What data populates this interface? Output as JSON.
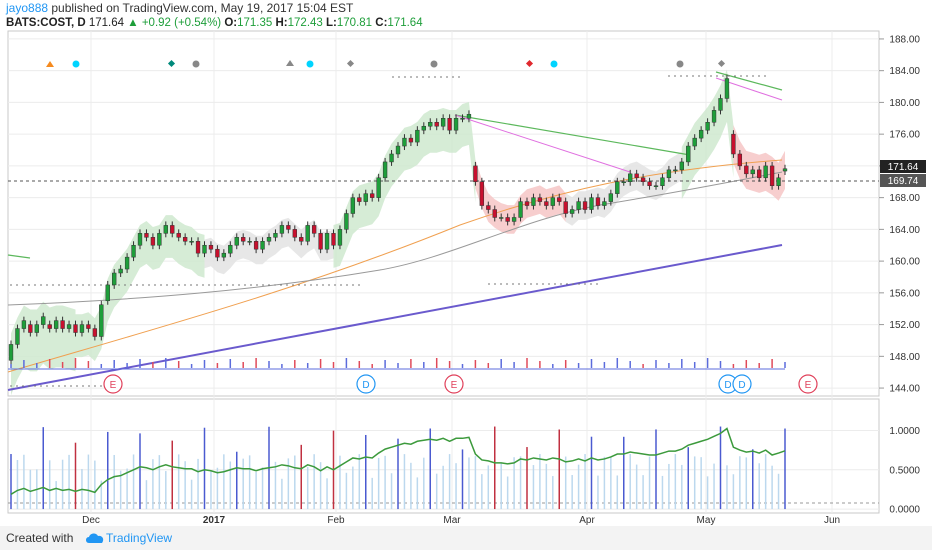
{
  "header": {
    "user": "jayo888",
    "published_text": " published on TradingView.com, May 19, 2017 15:04 EST"
  },
  "quote": {
    "symbol": "BATS:COST, D",
    "last": "171.64",
    "change": "+0.92 (+0.54%)",
    "open_label": "O:",
    "open": "171.35",
    "high_label": "H:",
    "high": "172.43",
    "low_label": "L:",
    "low": "170.81",
    "close_label": "C:",
    "close": "171.64"
  },
  "footer": {
    "created_with": "Created with",
    "brand": "TradingView"
  },
  "colors": {
    "up": "#1e9e3a",
    "down": "#c8102e",
    "grid": "#e6e6e6",
    "accent": "#2196f3"
  },
  "chart_data": {
    "type": "candlestick",
    "price_axis": {
      "ticks": [
        "188.00",
        "184.00",
        "180.00",
        "176.00",
        "172.00",
        "168.00",
        "164.00",
        "160.00",
        "156.00",
        "152.00",
        "148.00",
        "144.00"
      ],
      "ylim": [
        143,
        189
      ]
    },
    "x_tick_labels": [
      "Dec",
      "2017",
      "Feb",
      "Mar",
      "Apr",
      "May",
      "Jun"
    ],
    "price_labels": {
      "last": "171.64",
      "dashed_level": "169.74"
    },
    "event_markers": [
      "E",
      "D",
      "E",
      "D",
      "D",
      "E"
    ],
    "candles": [
      [
        147.5,
        149.5
      ],
      [
        149.5,
        151.5
      ],
      [
        151.5,
        152.5
      ],
      [
        152.0,
        151.0
      ],
      [
        151.0,
        152.0
      ],
      [
        152.0,
        153.0
      ],
      [
        152.0,
        151.5
      ],
      [
        151.5,
        152.5
      ],
      [
        152.5,
        151.5
      ],
      [
        151.5,
        152.0
      ],
      [
        152.0,
        151.0
      ],
      [
        151.0,
        152.0
      ],
      [
        152.0,
        151.5
      ],
      [
        151.5,
        150.5
      ],
      [
        150.5,
        154.5
      ],
      [
        155.0,
        157.0
      ],
      [
        157.0,
        158.5
      ],
      [
        158.5,
        159.0
      ],
      [
        159.0,
        160.5
      ],
      [
        160.5,
        162.0
      ],
      [
        162.0,
        163.5
      ],
      [
        163.5,
        163.0
      ],
      [
        163.0,
        162.0
      ],
      [
        162.0,
        163.5
      ],
      [
        163.5,
        164.5
      ],
      [
        164.5,
        163.5
      ],
      [
        163.5,
        163.0
      ],
      [
        163.0,
        162.5
      ],
      [
        162.5,
        162.5
      ],
      [
        162.5,
        161.0
      ],
      [
        161.0,
        162.0
      ],
      [
        162.0,
        161.5
      ],
      [
        161.5,
        160.5
      ],
      [
        160.5,
        161.0
      ],
      [
        161.0,
        162.0
      ],
      [
        162.0,
        163.0
      ],
      [
        163.0,
        162.5
      ],
      [
        162.5,
        162.5
      ],
      [
        162.5,
        161.5
      ],
      [
        161.5,
        162.5
      ],
      [
        162.5,
        163.0
      ],
      [
        163.0,
        163.5
      ],
      [
        163.5,
        164.5
      ],
      [
        164.5,
        164.0
      ],
      [
        164.0,
        163.0
      ],
      [
        163.0,
        162.5
      ],
      [
        162.5,
        164.5
      ],
      [
        164.5,
        163.5
      ],
      [
        163.5,
        161.5
      ],
      [
        161.5,
        163.5
      ],
      [
        163.5,
        162.0
      ],
      [
        162.0,
        164.0
      ],
      [
        164.0,
        166.0
      ],
      [
        166.0,
        168.0
      ],
      [
        168.0,
        167.5
      ],
      [
        167.5,
        168.5
      ],
      [
        168.5,
        168.0
      ],
      [
        168.0,
        170.5
      ],
      [
        170.5,
        172.5
      ],
      [
        172.5,
        173.5
      ],
      [
        173.5,
        174.5
      ],
      [
        174.5,
        175.5
      ],
      [
        175.5,
        175.0
      ],
      [
        175.0,
        176.5
      ],
      [
        176.5,
        177.0
      ],
      [
        177.0,
        177.5
      ],
      [
        177.5,
        177.0
      ],
      [
        177.0,
        178.0
      ],
      [
        178.0,
        176.5
      ],
      [
        176.5,
        178.0
      ],
      [
        178.0,
        178.0
      ],
      [
        178.0,
        178.5
      ],
      [
        172.0,
        170.0
      ],
      [
        170.0,
        167.0
      ],
      [
        167.0,
        166.5
      ],
      [
        166.5,
        165.5
      ],
      [
        165.5,
        165.5
      ],
      [
        165.5,
        165.0
      ],
      [
        165.0,
        165.5
      ],
      [
        165.5,
        167.5
      ],
      [
        167.5,
        167.0
      ],
      [
        167.0,
        168.0
      ],
      [
        168.0,
        167.5
      ],
      [
        167.5,
        167.0
      ],
      [
        167.0,
        168.0
      ],
      [
        168.0,
        167.5
      ],
      [
        167.5,
        166.0
      ],
      [
        166.0,
        166.5
      ],
      [
        166.5,
        167.5
      ],
      [
        167.5,
        166.5
      ],
      [
        166.5,
        168.0
      ],
      [
        168.0,
        167.0
      ],
      [
        167.0,
        167.5
      ],
      [
        167.5,
        168.5
      ],
      [
        168.5,
        170.0
      ],
      [
        170.0,
        170.0
      ],
      [
        170.0,
        171.0
      ],
      [
        171.0,
        170.5
      ],
      [
        170.5,
        170.0
      ],
      [
        170.0,
        169.5
      ],
      [
        169.5,
        169.5
      ],
      [
        169.5,
        170.5
      ],
      [
        170.5,
        171.5
      ],
      [
        171.5,
        171.5
      ],
      [
        171.5,
        172.5
      ],
      [
        172.5,
        174.5
      ],
      [
        174.5,
        175.5
      ],
      [
        175.5,
        176.5
      ],
      [
        176.5,
        177.5
      ],
      [
        177.5,
        179.0
      ],
      [
        179.0,
        180.5
      ],
      [
        180.5,
        183.0
      ],
      [
        176.0,
        173.5
      ],
      [
        173.5,
        172.0
      ],
      [
        172.0,
        171.0
      ],
      [
        171.0,
        171.5
      ],
      [
        171.5,
        170.5
      ],
      [
        170.5,
        172.0
      ],
      [
        172.0,
        169.5
      ],
      [
        169.5,
        170.5
      ],
      [
        171.35,
        171.64
      ]
    ],
    "oscillator": {
      "ticks": [
        "1.0000",
        "0.5000",
        "0.0000"
      ],
      "ylim": [
        -0.05,
        1.4
      ]
    }
  }
}
